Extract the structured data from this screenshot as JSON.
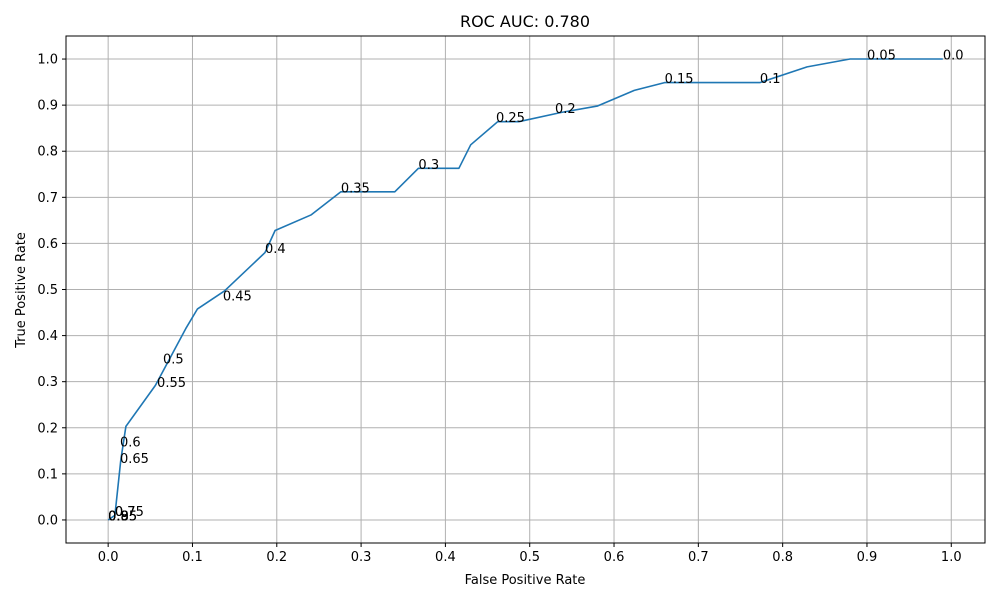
{
  "chart_data": {
    "type": "line",
    "title": "ROC AUC: 0.780",
    "xlabel": "False Positive Rate",
    "ylabel": "True Positive Rate",
    "xlim": [
      -0.05,
      1.04
    ],
    "ylim": [
      -0.05,
      1.05
    ],
    "grid": true,
    "x_ticks": [
      "0.0",
      "0.1",
      "0.2",
      "0.3",
      "0.4",
      "0.5",
      "0.6",
      "0.7",
      "0.8",
      "0.9",
      "1.0"
    ],
    "y_ticks": [
      "0.0",
      "0.1",
      "0.2",
      "0.3",
      "0.4",
      "0.5",
      "0.6",
      "0.7",
      "0.8",
      "0.9",
      "1.0"
    ],
    "series": [
      {
        "color": "#1f77b4",
        "x": [
          0.0,
          0.008,
          0.015,
          0.021,
          0.056,
          0.092,
          0.106,
          0.138,
          0.186,
          0.198,
          0.241,
          0.276,
          0.34,
          0.368,
          0.416,
          0.43,
          0.462,
          0.487,
          0.537,
          0.58,
          0.624,
          0.66,
          0.773,
          0.829,
          0.88,
          0.99
        ],
        "y": [
          0.0,
          0.01,
          0.13,
          0.203,
          0.292,
          0.415,
          0.458,
          0.497,
          0.58,
          0.628,
          0.662,
          0.712,
          0.712,
          0.763,
          0.763,
          0.814,
          0.864,
          0.864,
          0.884,
          0.898,
          0.932,
          0.949,
          0.949,
          0.983,
          1.0,
          1.0
        ]
      }
    ],
    "annotations": [
      {
        "text": "0.0",
        "x": 0.99,
        "y": 1.0
      },
      {
        "text": "0.05",
        "x": 0.9,
        "y": 1.0
      },
      {
        "text": "0.1",
        "x": 0.773,
        "y": 0.949
      },
      {
        "text": "0.15",
        "x": 0.66,
        "y": 0.949
      },
      {
        "text": "0.2",
        "x": 0.53,
        "y": 0.884
      },
      {
        "text": "0.25",
        "x": 0.46,
        "y": 0.864
      },
      {
        "text": "0.3",
        "x": 0.368,
        "y": 0.763
      },
      {
        "text": "0.35",
        "x": 0.276,
        "y": 0.712
      },
      {
        "text": "0.4",
        "x": 0.186,
        "y": 0.58
      },
      {
        "text": "0.45",
        "x": 0.136,
        "y": 0.477
      },
      {
        "text": "0.5",
        "x": 0.065,
        "y": 0.34
      },
      {
        "text": "0.55",
        "x": 0.058,
        "y": 0.29
      },
      {
        "text": "0.6",
        "x": 0.014,
        "y": 0.16
      },
      {
        "text": "0.65",
        "x": 0.014,
        "y": 0.125
      },
      {
        "text": "0.7",
        "x": 0.008,
        "y": 0.01
      },
      {
        "text": "0.75",
        "x": 0.008,
        "y": 0.01
      },
      {
        "text": "0.8",
        "x": 0.0,
        "y": 0.0
      },
      {
        "text": "0.85",
        "x": 0.0,
        "y": 0.0
      },
      {
        "text": "0.9",
        "x": 0.0,
        "y": 0.0
      },
      {
        "text": "0.95",
        "x": 0.0,
        "y": 0.0
      }
    ]
  }
}
